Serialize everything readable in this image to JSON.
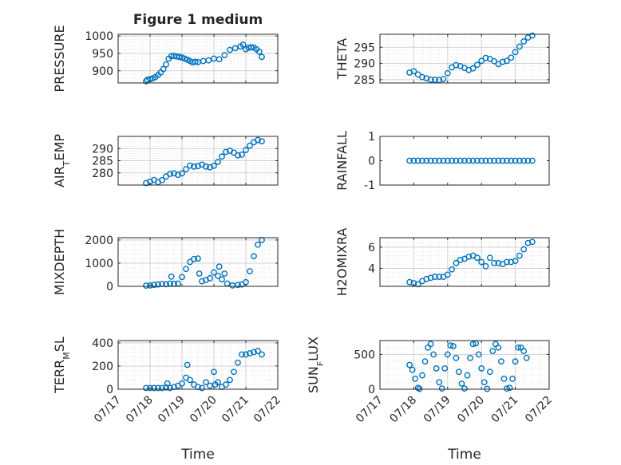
{
  "figure_title": "Figure 1 medium",
  "chart_data": [
    {
      "type": "scatter",
      "ylabel": "PRESSURE",
      "ylim": [
        865,
        1005
      ],
      "yticks": [
        900,
        950,
        1000
      ],
      "grid": true,
      "x": [
        "07/17 21:00",
        "07/17 22:00",
        "07/18 00:00",
        "07/18 02:00",
        "07/18 04:00",
        "07/18 06:00",
        "07/18 08:00",
        "07/18 10:00",
        "07/18 12:00",
        "07/18 14:00",
        "07/18 16:00",
        "07/18 18:00",
        "07/18 20:00",
        "07/18 22:00",
        "07/19 00:00",
        "07/19 02:00",
        "07/19 04:00",
        "07/19 06:00",
        "07/19 08:00",
        "07/19 10:00",
        "07/19 12:00",
        "07/19 16:00",
        "07/19 20:00",
        "07/20 00:00",
        "07/20 04:00",
        "07/20 08:00",
        "07/20 12:00",
        "07/20 16:00",
        "07/20 20:00",
        "07/20 22:00",
        "07/21 00:00",
        "07/21 02:00",
        "07/21 04:00",
        "07/21 06:00",
        "07/21 08:00",
        "07/21 10:00",
        "07/21 12:00"
      ],
      "y": [
        870,
        874,
        876,
        878,
        882,
        888,
        895,
        905,
        918,
        935,
        942,
        943,
        941,
        940,
        938,
        935,
        932,
        928,
        924,
        926,
        925,
        928,
        930,
        935,
        933,
        945,
        960,
        965,
        970,
        975,
        962,
        966,
        968,
        967,
        962,
        955,
        940
      ]
    },
    {
      "type": "scatter",
      "ylabel": "THETA",
      "ylim": [
        284,
        299
      ],
      "yticks": [
        285,
        290,
        295
      ],
      "grid": true,
      "x": [
        "07/17 21:00",
        "07/18 00:00",
        "07/18 03:00",
        "07/18 06:00",
        "07/18 09:00",
        "07/18 12:00",
        "07/18 15:00",
        "07/18 18:00",
        "07/18 21:00",
        "07/19 00:00",
        "07/19 03:00",
        "07/19 06:00",
        "07/19 09:00",
        "07/19 12:00",
        "07/19 15:00",
        "07/19 18:00",
        "07/19 21:00",
        "07/20 00:00",
        "07/20 03:00",
        "07/20 06:00",
        "07/20 09:00",
        "07/20 12:00",
        "07/20 15:00",
        "07/20 18:00",
        "07/20 21:00",
        "07/21 00:00",
        "07/21 03:00",
        "07/21 06:00",
        "07/21 09:00",
        "07/21 12:00"
      ],
      "y": [
        287.2,
        287.6,
        286.6,
        285.8,
        285.4,
        285.0,
        285.0,
        284.9,
        285.2,
        287.0,
        288.8,
        289.5,
        289.2,
        288.6,
        288.0,
        288.5,
        289.6,
        290.8,
        291.7,
        291.4,
        290.7,
        289.8,
        290.5,
        290.8,
        291.8,
        293.5,
        295.2,
        296.8,
        298.0,
        298.6
      ]
    },
    {
      "type": "scatter",
      "ylabel": "AIR_TEMP",
      "ylim": [
        275,
        295
      ],
      "yticks": [
        280,
        285,
        290
      ],
      "grid": true,
      "x": [
        "07/17 21:00",
        "07/18 00:00",
        "07/18 03:00",
        "07/18 06:00",
        "07/18 09:00",
        "07/18 12:00",
        "07/18 15:00",
        "07/18 18:00",
        "07/18 21:00",
        "07/19 00:00",
        "07/19 03:00",
        "07/19 06:00",
        "07/19 09:00",
        "07/19 12:00",
        "07/19 15:00",
        "07/19 18:00",
        "07/19 21:00",
        "07/20 00:00",
        "07/20 03:00",
        "07/20 06:00",
        "07/20 09:00",
        "07/20 12:00",
        "07/20 15:00",
        "07/20 18:00",
        "07/20 21:00",
        "07/21 00:00",
        "07/21 03:00",
        "07/21 06:00",
        "07/21 09:00",
        "07/21 12:00"
      ],
      "y": [
        275.8,
        276.4,
        277.1,
        276.2,
        277.0,
        278.5,
        279.6,
        279.8,
        279.2,
        279.8,
        281.5,
        283.0,
        282.6,
        282.8,
        283.4,
        282.6,
        282.3,
        282.9,
        284.5,
        286.7,
        288.6,
        289.1,
        288.3,
        287.2,
        287.5,
        289.4,
        291.2,
        292.6,
        293.5,
        293.0
      ]
    },
    {
      "type": "scatter",
      "ylabel": "RAINFALL",
      "ylim": [
        -1,
        1
      ],
      "yticks": [
        -1,
        0,
        1
      ],
      "grid": false,
      "x": [
        "07/17 21:00",
        "07/18 00:00",
        "07/18 03:00",
        "07/18 06:00",
        "07/18 09:00",
        "07/18 12:00",
        "07/18 15:00",
        "07/18 18:00",
        "07/18 21:00",
        "07/19 00:00",
        "07/19 03:00",
        "07/19 06:00",
        "07/19 09:00",
        "07/19 12:00",
        "07/19 15:00",
        "07/19 18:00",
        "07/19 21:00",
        "07/20 00:00",
        "07/20 03:00",
        "07/20 06:00",
        "07/20 09:00",
        "07/20 12:00",
        "07/20 15:00",
        "07/20 18:00",
        "07/20 21:00",
        "07/21 00:00",
        "07/21 03:00",
        "07/21 06:00",
        "07/21 09:00",
        "07/21 12:00"
      ],
      "y": [
        0,
        0,
        0,
        0,
        0,
        0,
        0,
        0,
        0,
        0,
        0,
        0,
        0,
        0,
        0,
        0,
        0,
        0,
        0,
        0,
        0,
        0,
        0,
        0,
        0,
        0,
        0,
        0,
        0,
        0
      ]
    },
    {
      "type": "scatter",
      "ylabel": "MIXDEPTH",
      "ylim": [
        0,
        2100
      ],
      "yticks": [
        0,
        1000,
        2000
      ],
      "grid": true,
      "x": [
        "07/17 21:00",
        "07/18 00:00",
        "07/18 03:00",
        "07/18 06:00",
        "07/18 09:00",
        "07/18 12:00",
        "07/18 15:00",
        "07/18 16:00",
        "07/18 18:00",
        "07/18 21:00",
        "07/19 00:00",
        "07/19 03:00",
        "07/19 06:00",
        "07/19 09:00",
        "07/19 12:00",
        "07/19 13:00",
        "07/19 15:00",
        "07/19 18:00",
        "07/19 21:00",
        "07/20 00:00",
        "07/20 03:00",
        "07/20 04:00",
        "07/20 06:00",
        "07/20 08:00",
        "07/20 10:00",
        "07/20 14:00",
        "07/20 18:00",
        "07/20 21:00",
        "07/21 00:00",
        "07/21 03:00",
        "07/21 06:00",
        "07/21 09:00",
        "07/21 12:00"
      ],
      "y": [
        30,
        40,
        60,
        80,
        100,
        90,
        120,
        420,
        110,
        120,
        400,
        750,
        1050,
        1180,
        1200,
        550,
        220,
        270,
        350,
        600,
        450,
        850,
        300,
        550,
        120,
        40,
        60,
        80,
        180,
        650,
        1300,
        1800,
        2000
      ]
    },
    {
      "type": "scatter",
      "ylabel": "H2OMIXRA",
      "ylim": [
        2.3,
        6.9
      ],
      "yticks": [
        4,
        6
      ],
      "grid": true,
      "x": [
        "07/17 21:00",
        "07/18 00:00",
        "07/18 03:00",
        "07/18 06:00",
        "07/18 09:00",
        "07/18 12:00",
        "07/18 15:00",
        "07/18 18:00",
        "07/18 21:00",
        "07/19 00:00",
        "07/19 03:00",
        "07/19 06:00",
        "07/19 09:00",
        "07/19 12:00",
        "07/19 15:00",
        "07/19 18:00",
        "07/19 21:00",
        "07/20 00:00",
        "07/20 03:00",
        "07/20 06:00",
        "07/20 09:00",
        "07/20 12:00",
        "07/20 15:00",
        "07/20 18:00",
        "07/20 21:00",
        "07/21 00:00",
        "07/21 03:00",
        "07/21 06:00",
        "07/21 09:00",
        "07/21 12:00"
      ],
      "y": [
        2.7,
        2.6,
        2.5,
        2.8,
        3.0,
        3.1,
        3.2,
        3.2,
        3.2,
        3.4,
        3.9,
        4.5,
        4.8,
        4.9,
        5.1,
        5.2,
        5.0,
        4.6,
        4.2,
        5.0,
        4.5,
        4.5,
        4.4,
        4.6,
        4.6,
        4.7,
        5.2,
        5.8,
        6.4,
        6.5
      ]
    },
    {
      "type": "scatter",
      "ylabel": "TERR_MSL",
      "ylim": [
        0,
        420
      ],
      "yticks": [
        0,
        200,
        400
      ],
      "grid": true,
      "x": [
        "07/17 21:00",
        "07/18 00:00",
        "07/18 03:00",
        "07/18 06:00",
        "07/18 09:00",
        "07/18 12:00",
        "07/18 13:00",
        "07/18 15:00",
        "07/18 18:00",
        "07/18 21:00",
        "07/19 00:00",
        "07/19 03:00",
        "07/19 04:00",
        "07/19 06:00",
        "07/19 09:00",
        "07/19 12:00",
        "07/19 15:00",
        "07/19 18:00",
        "07/19 21:00",
        "07/20 00:00",
        "07/20 01:00",
        "07/20 03:00",
        "07/20 06:00",
        "07/20 09:00",
        "07/20 12:00",
        "07/20 15:00",
        "07/20 18:00",
        "07/20 21:00",
        "07/21 00:00",
        "07/21 03:00",
        "07/21 06:00",
        "07/21 09:00",
        "07/21 12:00"
      ],
      "y": [
        10,
        10,
        10,
        10,
        10,
        15,
        50,
        10,
        20,
        30,
        50,
        100,
        210,
        80,
        40,
        20,
        10,
        60,
        30,
        150,
        40,
        60,
        20,
        40,
        80,
        150,
        230,
        300,
        300,
        310,
        320,
        330,
        300
      ]
    },
    {
      "type": "scatter",
      "ylabel": "SUN_FLUX",
      "ylim": [
        0,
        700
      ],
      "yticks": [
        0,
        500
      ],
      "grid": true,
      "x": [
        "07/17 21:00",
        "07/17 23:00",
        "07/18 01:00",
        "07/18 03:00",
        "07/18 04:00",
        "07/18 06:00",
        "07/18 08:00",
        "07/18 10:00",
        "07/18 12:00",
        "07/18 14:00",
        "07/18 16:00",
        "07/18 18:00",
        "07/18 20:00",
        "07/18 22:00",
        "07/19 00:00",
        "07/19 02:00",
        "07/19 04:00",
        "07/19 06:00",
        "07/19 08:00",
        "07/19 10:00",
        "07/19 12:00",
        "07/19 14:00",
        "07/19 16:00",
        "07/19 18:00",
        "07/19 20:00",
        "07/19 22:00",
        "07/20 00:00",
        "07/20 02:00",
        "07/20 04:00",
        "07/20 06:00",
        "07/20 08:00",
        "07/20 10:00",
        "07/20 12:00",
        "07/20 14:00",
        "07/20 16:00",
        "07/20 18:00",
        "07/20 20:00",
        "07/20 22:00",
        "07/21 00:00",
        "07/21 02:00",
        "07/21 04:00",
        "07/21 06:00",
        "07/21 08:00"
      ],
      "y": [
        350,
        280,
        150,
        20,
        5,
        200,
        400,
        600,
        650,
        500,
        300,
        100,
        10,
        300,
        500,
        630,
        620,
        450,
        250,
        80,
        10,
        200,
        450,
        650,
        660,
        500,
        300,
        100,
        5,
        250,
        550,
        650,
        600,
        400,
        150,
        10,
        20,
        150,
        400,
        600,
        600,
        550,
        450
      ]
    }
  ],
  "xaxis": {
    "ticks": [
      "07/17",
      "07/18",
      "07/19",
      "07/20",
      "07/21",
      "07/22"
    ],
    "xlim": [
      "07/17 00:00",
      "07/22 00:00"
    ],
    "label": "Time"
  },
  "colors": {
    "marker": "#0072BD",
    "axis": "#262626",
    "grid": "#dcdcdc"
  }
}
